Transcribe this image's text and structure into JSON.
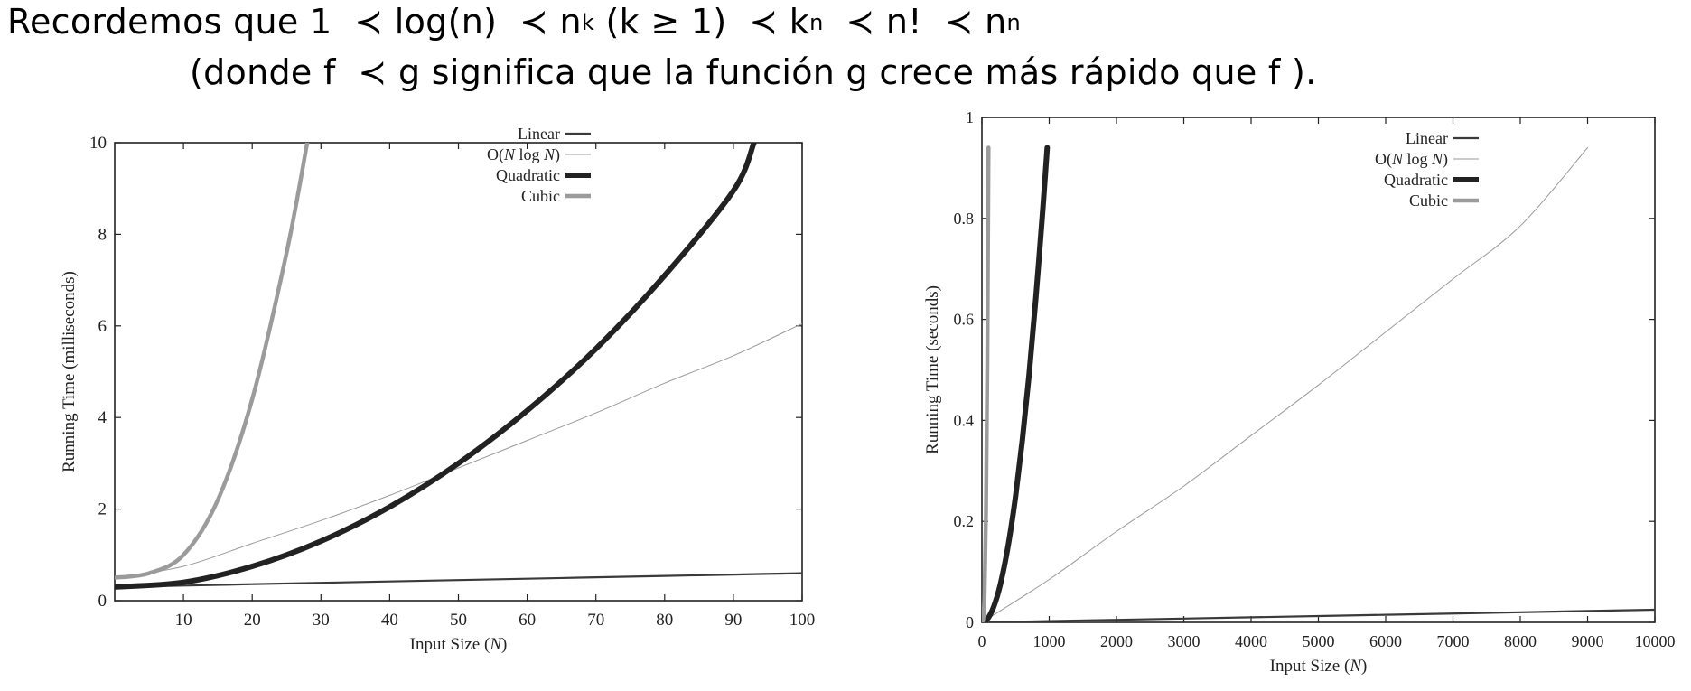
{
  "header": {
    "line1": {
      "t1": "Recordemos que 1",
      "prec": "≺",
      "t2": "log(n)",
      "t3": "n",
      "sup_k": "k",
      "t4": "(k ≥ 1)",
      "t5": "k",
      "sup_n1": "n",
      "t6": "n!",
      "t7": "n",
      "sup_n2": "n"
    },
    "line2": {
      "a": "(donde f",
      "prec": "≺",
      "b": "g significa que la función g crece más rápido que f )."
    }
  },
  "colors": {
    "linear": "#3a3a3a",
    "nlogn": "#9a9a9a",
    "quadratic": "#222222",
    "cubic": "#9b9b9b",
    "axis": "#222222"
  },
  "chart_data": [
    {
      "type": "line",
      "xlabel_main": "Input Size (",
      "xlabel_var": "N",
      "xlabel_end": ")",
      "ylabel": "Running Time (milliseconds)",
      "xlim": [
        0,
        100
      ],
      "ylim": [
        0,
        10
      ],
      "xticks": [
        10,
        20,
        30,
        40,
        50,
        60,
        70,
        80,
        90,
        100
      ],
      "yticks": [
        0,
        2,
        4,
        6,
        8,
        10
      ],
      "grid": false,
      "legend_position": "top-right",
      "series": [
        {
          "name": "Linear",
          "legend": [
            "Linear"
          ],
          "style": "linear",
          "x": [
            0,
            10,
            20,
            30,
            40,
            50,
            60,
            70,
            80,
            90,
            100
          ],
          "y": [
            0.3,
            0.33,
            0.36,
            0.39,
            0.42,
            0.45,
            0.48,
            0.51,
            0.54,
            0.57,
            0.6
          ]
        },
        {
          "name": "O(N log N)",
          "legend": [
            "O(",
            "N",
            " log ",
            "N",
            ")"
          ],
          "style": "nlogn",
          "x": [
            0,
            10,
            20,
            30,
            40,
            50,
            60,
            70,
            80,
            90,
            100
          ],
          "y": [
            0.5,
            0.75,
            1.25,
            1.75,
            2.3,
            2.9,
            3.5,
            4.1,
            4.75,
            5.35,
            6.05
          ]
        },
        {
          "name": "Quadratic",
          "legend": [
            "Quadratic"
          ],
          "style": "quadratic",
          "x": [
            0,
            10,
            20,
            30,
            40,
            50,
            60,
            70,
            80,
            90,
            93
          ],
          "y": [
            0.3,
            0.4,
            0.75,
            1.3,
            2.05,
            3.0,
            4.15,
            5.5,
            7.1,
            8.95,
            10.0
          ]
        },
        {
          "name": "Cubic",
          "legend": [
            "Cubic"
          ],
          "style": "cubic",
          "x": [
            0,
            5,
            10,
            15,
            20,
            25,
            28
          ],
          "y": [
            0.5,
            0.6,
            1.0,
            2.2,
            4.4,
            7.6,
            10.0
          ]
        }
      ]
    },
    {
      "type": "line",
      "xlabel_main": "Input Size (",
      "xlabel_var": "N",
      "xlabel_end": ")",
      "ylabel": "Running Time (seconds)",
      "xlim": [
        0,
        10000
      ],
      "ylim": [
        0,
        1
      ],
      "xticks": [
        0,
        1000,
        2000,
        3000,
        4000,
        5000,
        6000,
        7000,
        8000,
        9000,
        10000
      ],
      "yticks": [
        0,
        0.2,
        0.4,
        0.6,
        0.8,
        1
      ],
      "grid": false,
      "legend_position": "top-right",
      "series": [
        {
          "name": "Linear",
          "legend": [
            "Linear"
          ],
          "style": "linear",
          "x": [
            0,
            2000,
            4000,
            6000,
            8000,
            10000
          ],
          "y": [
            0,
            0.005,
            0.01,
            0.015,
            0.02,
            0.025
          ]
        },
        {
          "name": "O(N log N)",
          "legend": [
            "O(",
            "N",
            " log ",
            "N",
            ")"
          ],
          "style": "nlogn",
          "x": [
            0,
            1000,
            2000,
            3000,
            4000,
            5000,
            6000,
            7000,
            8000,
            9000
          ],
          "y": [
            0,
            0.085,
            0.18,
            0.27,
            0.37,
            0.47,
            0.575,
            0.68,
            0.785,
            0.94
          ]
        },
        {
          "name": "Quadratic",
          "legend": [
            "Quadratic"
          ],
          "style": "quadratic",
          "x": [
            0,
            100,
            200,
            300,
            400,
            500,
            600,
            700,
            800,
            900,
            970
          ],
          "y": [
            0,
            0.01,
            0.04,
            0.09,
            0.16,
            0.25,
            0.36,
            0.49,
            0.64,
            0.81,
            0.94
          ]
        },
        {
          "name": "Cubic",
          "legend": [
            "Cubic"
          ],
          "style": "cubic",
          "x": [
            0,
            20,
            40,
            60,
            80,
            98
          ],
          "y": [
            0,
            0.008,
            0.064,
            0.216,
            0.512,
            0.94
          ]
        }
      ]
    }
  ]
}
